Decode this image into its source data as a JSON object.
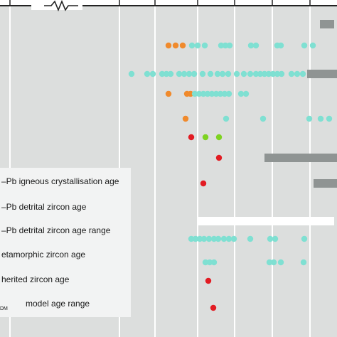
{
  "colors": {
    "panel": "#dcdedd",
    "grid": "#ffffff",
    "axis": "#222222",
    "legend_bg": "#f2f3f3",
    "detrital": "#7fe0d2",
    "detrital_orange": "#f08a2c",
    "igneous": "#e21c23",
    "metamorphic": "#7ed321",
    "range_bar": "#8f9493"
  },
  "legend": {
    "items": [
      {
        "label": "–Pb igneous crystallisation age"
      },
      {
        "label": "–Pb detrital zircon age"
      },
      {
        "label": "–Pb detrital zircon age range"
      },
      {
        "label": "etamorphic zircon age"
      },
      {
        "label": "herited zircon age"
      },
      {
        "label": "model age range",
        "prefix": "DM"
      }
    ]
  },
  "chart_data": {
    "type": "scatter",
    "note_axis_break": true,
    "rows": [
      {
        "ranges": [
          {
            "from": 450,
            "to": 470,
            "color": "range_bar"
          }
        ]
      },
      {
        "points": [
          {
            "x": 237,
            "color": "detrital_orange"
          },
          {
            "x": 247,
            "color": "detrital_orange"
          },
          {
            "x": 257,
            "color": "detrital_orange"
          },
          {
            "x": 270,
            "color": "detrital"
          },
          {
            "x": 278,
            "color": "detrital"
          },
          {
            "x": 288,
            "color": "detrital"
          },
          {
            "x": 311,
            "color": "detrital"
          },
          {
            "x": 317,
            "color": "detrital"
          },
          {
            "x": 323,
            "color": "detrital"
          },
          {
            "x": 353,
            "color": "detrital"
          },
          {
            "x": 360,
            "color": "detrital"
          },
          {
            "x": 390,
            "color": "detrital"
          },
          {
            "x": 395,
            "color": "detrital"
          },
          {
            "x": 428,
            "color": "detrital"
          },
          {
            "x": 440,
            "color": "detrital"
          }
        ]
      },
      {
        "points": [
          {
            "x": 185,
            "color": "detrital"
          },
          {
            "x": 207,
            "color": "detrital"
          },
          {
            "x": 215,
            "color": "detrital"
          },
          {
            "x": 228,
            "color": "detrital"
          },
          {
            "x": 234,
            "color": "detrital"
          },
          {
            "x": 240,
            "color": "detrital"
          },
          {
            "x": 252,
            "color": "detrital"
          },
          {
            "x": 259,
            "color": "detrital"
          },
          {
            "x": 266,
            "color": "detrital"
          },
          {
            "x": 273,
            "color": "detrital"
          },
          {
            "x": 285,
            "color": "detrital"
          },
          {
            "x": 296,
            "color": "detrital"
          },
          {
            "x": 306,
            "color": "detrital"
          },
          {
            "x": 313,
            "color": "detrital"
          },
          {
            "x": 321,
            "color": "detrital"
          },
          {
            "x": 333,
            "color": "detrital"
          },
          {
            "x": 343,
            "color": "detrital"
          },
          {
            "x": 352,
            "color": "detrital"
          },
          {
            "x": 360,
            "color": "detrital"
          },
          {
            "x": 366,
            "color": "detrital"
          },
          {
            "x": 372,
            "color": "detrital"
          },
          {
            "x": 378,
            "color": "detrital"
          },
          {
            "x": 384,
            "color": "detrital"
          },
          {
            "x": 390,
            "color": "detrital"
          },
          {
            "x": 396,
            "color": "detrital"
          },
          {
            "x": 410,
            "color": "detrital"
          },
          {
            "x": 418,
            "color": "detrital"
          },
          {
            "x": 426,
            "color": "detrital"
          }
        ],
        "ranges": [
          {
            "from": 432,
            "to": 474,
            "color": "range_bar"
          }
        ]
      },
      {
        "points": [
          {
            "x": 237,
            "color": "detrital_orange"
          },
          {
            "x": 263,
            "color": "detrital_orange"
          },
          {
            "x": 268,
            "color": "detrital_orange"
          },
          {
            "x": 274,
            "color": "detrital"
          },
          {
            "x": 280,
            "color": "detrital"
          },
          {
            "x": 286,
            "color": "detrital"
          },
          {
            "x": 292,
            "color": "detrital"
          },
          {
            "x": 298,
            "color": "detrital"
          },
          {
            "x": 304,
            "color": "detrital"
          },
          {
            "x": 310,
            "color": "detrital"
          },
          {
            "x": 316,
            "color": "detrital"
          },
          {
            "x": 322,
            "color": "detrital"
          },
          {
            "x": 339,
            "color": "detrital"
          },
          {
            "x": 346,
            "color": "detrital"
          }
        ]
      },
      {
        "points": [
          {
            "x": 261,
            "color": "detrital_orange"
          },
          {
            "x": 318,
            "color": "detrital"
          },
          {
            "x": 370,
            "color": "detrital"
          },
          {
            "x": 435,
            "color": "detrital"
          },
          {
            "x": 451,
            "color": "detrital"
          },
          {
            "x": 463,
            "color": "detrital"
          }
        ]
      },
      {
        "points": [
          {
            "x": 269,
            "color": "igneous"
          },
          {
            "x": 289,
            "color": "metamorphic"
          },
          {
            "x": 308,
            "color": "metamorphic"
          }
        ]
      },
      {
        "points": [
          {
            "x": 308,
            "color": "igneous"
          }
        ],
        "ranges": [
          {
            "from": 372,
            "to": 474,
            "color": "range_bar"
          }
        ]
      },
      {
        "points": [
          {
            "x": 286,
            "color": "igneous"
          }
        ],
        "ranges": [
          {
            "from": 441,
            "to": 474,
            "color": "range_bar"
          }
        ]
      },
      {
        "ranges": [
          {
            "from": 278,
            "to": 470,
            "color": "grid"
          }
        ]
      },
      {
        "points": [
          {
            "x": 269,
            "color": "detrital"
          },
          {
            "x": 275,
            "color": "detrital"
          },
          {
            "x": 281,
            "color": "detrital"
          },
          {
            "x": 287,
            "color": "detrital"
          },
          {
            "x": 294,
            "color": "detrital"
          },
          {
            "x": 301,
            "color": "detrital"
          },
          {
            "x": 307,
            "color": "detrital"
          },
          {
            "x": 315,
            "color": "detrital"
          },
          {
            "x": 322,
            "color": "detrital"
          },
          {
            "x": 329,
            "color": "detrital"
          },
          {
            "x": 352,
            "color": "detrital"
          },
          {
            "x": 380,
            "color": "detrital"
          },
          {
            "x": 387,
            "color": "detrital"
          },
          {
            "x": 428,
            "color": "detrital"
          }
        ]
      },
      {
        "points": [
          {
            "x": 289,
            "color": "detrital"
          },
          {
            "x": 295,
            "color": "detrital"
          },
          {
            "x": 301,
            "color": "detrital"
          },
          {
            "x": 379,
            "color": "detrital"
          },
          {
            "x": 385,
            "color": "detrital"
          },
          {
            "x": 395,
            "color": "detrital"
          },
          {
            "x": 427,
            "color": "detrital"
          }
        ]
      },
      {
        "points": [
          {
            "x": 293,
            "color": "igneous"
          }
        ]
      },
      {
        "points": [
          {
            "x": 300,
            "color": "igneous"
          }
        ]
      }
    ]
  }
}
